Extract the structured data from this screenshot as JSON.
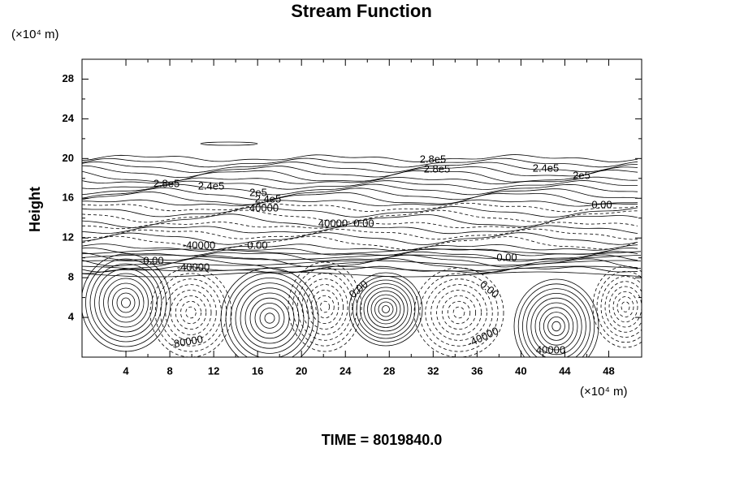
{
  "chart_data": {
    "type": "contour",
    "title": "Stream Function",
    "x_unit": "(×10⁴ m)",
    "y_unit": "(×10⁴ m)",
    "y_label": "Height",
    "xlim": [
      0,
      51
    ],
    "xticks": [
      4,
      8,
      12,
      16,
      20,
      24,
      28,
      32,
      36,
      40,
      44,
      48
    ],
    "ylim": [
      0,
      30
    ],
    "yticks": [
      4,
      8,
      12,
      16,
      20,
      24,
      28
    ],
    "contour_labels": [
      "2.8e5",
      "2.4e5",
      "2e5",
      "2.4e5",
      "40000",
      "2.8e5",
      "2.8e5",
      "2.4e5",
      "2e5",
      "0.00",
      "40000",
      "0.00",
      "-40000",
      "0.00",
      "0.00",
      "-40000",
      "0.00",
      "0.00",
      "0.00",
      "-80000",
      "-40000",
      "40000"
    ],
    "footer": "TIME = 8019840.0"
  }
}
